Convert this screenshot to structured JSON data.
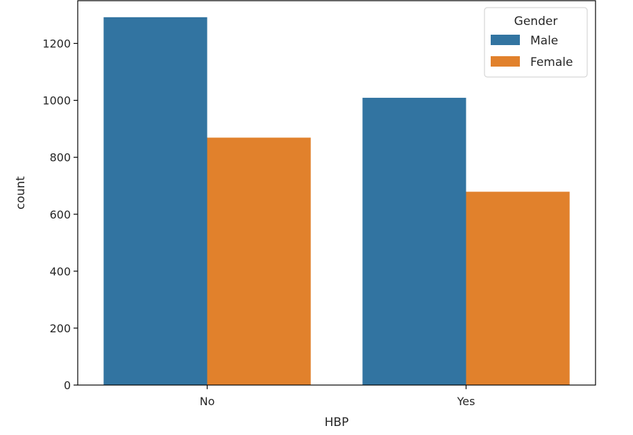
{
  "chart_data": {
    "type": "bar",
    "categories": [
      "No",
      "Yes"
    ],
    "series": [
      {
        "name": "Male",
        "values": [
          1292,
          1009
        ],
        "color": "#3274a1"
      },
      {
        "name": "Female",
        "values": [
          869,
          679
        ],
        "color": "#e1812c"
      }
    ],
    "xlabel": "HBP",
    "ylabel": "count",
    "ylim": [
      0,
      1350
    ],
    "yticks": [
      0,
      200,
      400,
      600,
      800,
      1000,
      1200
    ],
    "grid": false,
    "legend": {
      "title": "Gender",
      "placement": "top-right"
    }
  }
}
